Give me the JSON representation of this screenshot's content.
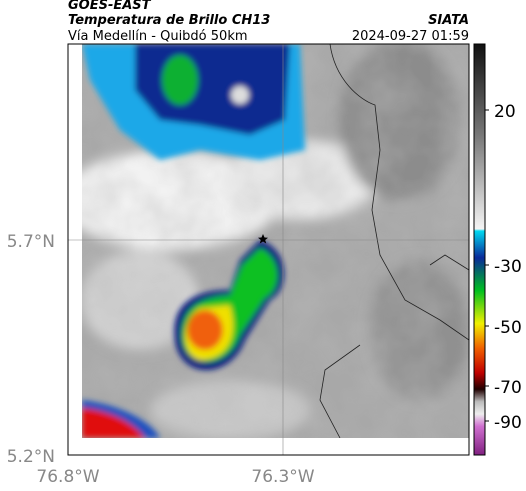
{
  "header": {
    "title": "GOES-EAST",
    "subtitle": "Temperatura de Brillo CH13",
    "location": "Vía Medellín - Quibdó 50km",
    "source": "SIATA",
    "datetime": "2024-09-27 01:59"
  },
  "map": {
    "lat_ticks": [
      "5.7°N",
      "5.2°N"
    ],
    "lon_ticks": [
      "76.8°W",
      "76.3°W"
    ]
  },
  "colorbar": {
    "ticks": [
      "20",
      "-30",
      "-50",
      "-70",
      "-90"
    ]
  }
}
